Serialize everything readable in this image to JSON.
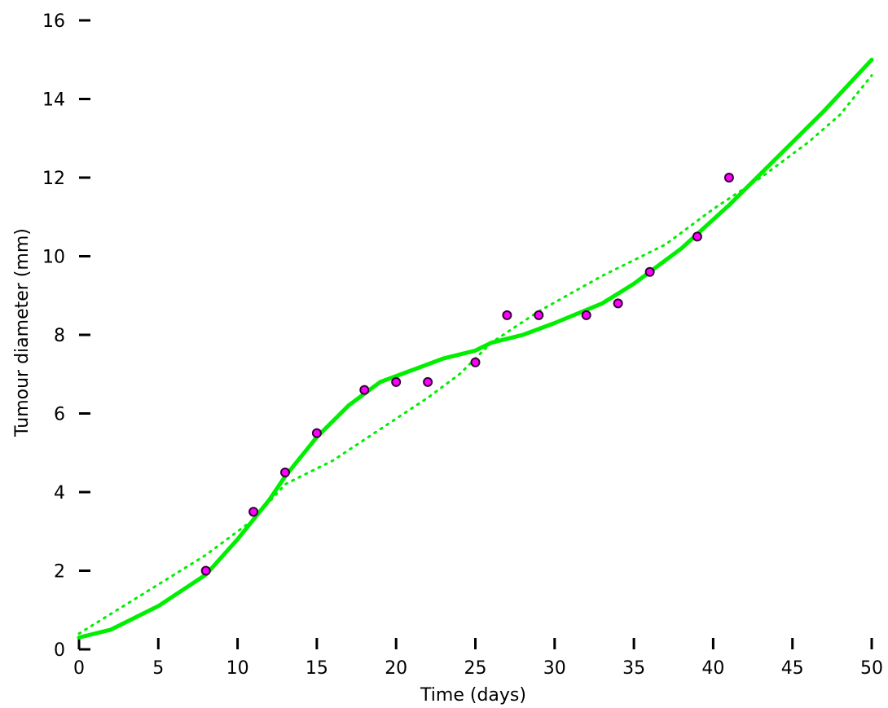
{
  "chart_data": {
    "type": "scatter",
    "title": "",
    "xlabel": "Time (days)",
    "ylabel": "Tumour diameter (mm)",
    "xlim": [
      0,
      50
    ],
    "ylim": [
      0,
      16
    ],
    "xticks": [
      0,
      5,
      10,
      15,
      20,
      25,
      30,
      35,
      40,
      45,
      50
    ],
    "yticks": [
      0,
      2,
      4,
      6,
      8,
      10,
      12,
      14,
      16
    ],
    "grid": false,
    "colors": {
      "points": "#ff00ff",
      "point_outline": "#330033",
      "curves": "#00ee00"
    },
    "series": [
      {
        "type": "scatter",
        "x": [
          8,
          11,
          13,
          15,
          18,
          20,
          22,
          25,
          27,
          29,
          32,
          34,
          36,
          39,
          41
        ],
        "y": [
          2.0,
          3.5,
          4.5,
          5.5,
          6.6,
          6.8,
          6.8,
          7.3,
          8.5,
          8.5,
          8.5,
          8.8,
          9.6,
          10.5,
          12.0
        ]
      },
      {
        "type": "line",
        "style": "solid",
        "x": [
          0,
          2,
          5,
          8,
          10,
          12,
          13,
          15,
          17,
          19,
          21,
          23,
          25,
          26,
          28,
          30,
          33,
          35,
          38,
          41,
          45,
          47,
          50
        ],
        "y": [
          0.3,
          0.5,
          1.1,
          1.9,
          2.8,
          3.8,
          4.4,
          5.4,
          6.2,
          6.8,
          7.1,
          7.4,
          7.6,
          7.8,
          8.0,
          8.3,
          8.8,
          9.3,
          10.2,
          11.3,
          12.9,
          13.7,
          15.0
        ]
      },
      {
        "type": "line",
        "style": "dotted",
        "x": [
          0,
          4,
          8,
          11,
          13,
          14,
          16,
          19,
          22,
          24,
          26,
          29,
          33,
          37,
          40,
          43,
          46,
          48,
          50
        ],
        "y": [
          0.4,
          1.4,
          2.4,
          3.3,
          4.2,
          4.4,
          4.8,
          5.6,
          6.4,
          7.0,
          7.8,
          8.6,
          9.5,
          10.3,
          11.2,
          12.0,
          12.9,
          13.6,
          14.6
        ]
      }
    ]
  }
}
